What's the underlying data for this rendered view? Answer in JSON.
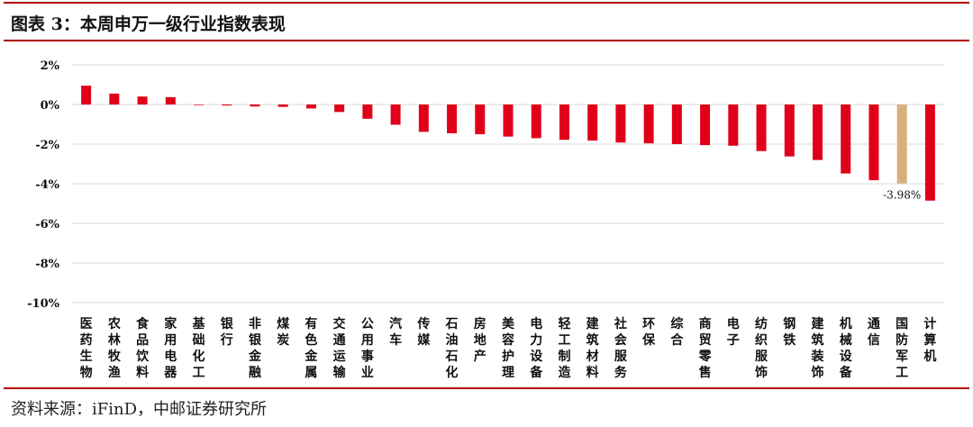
{
  "header": {
    "title": "图表 3：本周申万一级行业指数表现"
  },
  "footer": {
    "source": "资料来源：iFinD，中邮证券研究所"
  },
  "colors": {
    "bar": "#e1001a",
    "highlight": "#d8b07c",
    "rule": "#b30000"
  },
  "chart_data": {
    "type": "bar",
    "categories": [
      "医药生物",
      "农林牧渔",
      "食品饮料",
      "家用电器",
      "基础化工",
      "银行",
      "非银金融",
      "煤炭",
      "有色金属",
      "交通运输",
      "公用事业",
      "汽车",
      "传媒",
      "石油石化",
      "房地产",
      "美容护理",
      "电力设备",
      "轻工制造",
      "建筑材料",
      "社会服务",
      "环保",
      "综合",
      "商贸零售",
      "电子",
      "纺织服饰",
      "钢铁",
      "建筑装饰",
      "机械设备",
      "通信",
      "国防军工",
      "计算机"
    ],
    "values": [
      0.95,
      0.55,
      0.4,
      0.37,
      -0.03,
      -0.05,
      -0.1,
      -0.12,
      -0.2,
      -0.38,
      -0.72,
      -1.02,
      -1.38,
      -1.45,
      -1.5,
      -1.62,
      -1.7,
      -1.78,
      -1.82,
      -1.92,
      -1.96,
      -2.0,
      -2.05,
      -2.08,
      -2.35,
      -2.62,
      -2.8,
      -3.48,
      -3.82,
      -3.98,
      -4.85
    ],
    "highlight_category": "国防军工",
    "data_labels": [
      {
        "category": "国防军工",
        "text": "-3.98%"
      }
    ],
    "yticks": [
      "2%",
      "0%",
      "-2%",
      "-4%",
      "-6%",
      "-8%",
      "-10%"
    ],
    "ylim": [
      -10,
      2
    ],
    "grid": true
  }
}
